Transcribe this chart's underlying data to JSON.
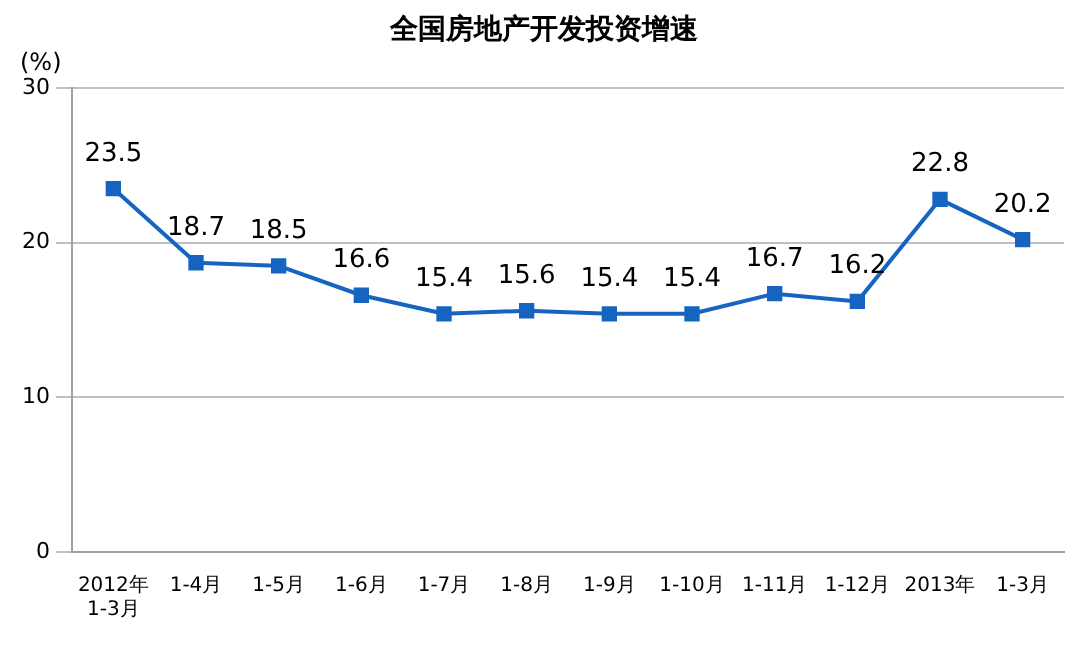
{
  "chart_data": {
    "type": "line",
    "title": "全国房地产开发投资增速",
    "ylabel": "(%)",
    "categories": [
      "2012年\n1-3月",
      "1-4月",
      "1-5月",
      "1-6月",
      "1-7月",
      "1-8月",
      "1-9月",
      "1-10月",
      "1-11月",
      "1-12月",
      "2013年",
      "1-3月"
    ],
    "series": [
      {
        "color": "#1565c0",
        "values": [
          23.5,
          18.7,
          18.5,
          16.6,
          15.4,
          15.6,
          15.4,
          15.4,
          16.7,
          16.2,
          22.8,
          20.2
        ]
      }
    ],
    "ylim": [
      0,
      30
    ],
    "yticks": [
      0,
      10,
      20,
      30
    ],
    "grid": "y",
    "legend": false,
    "marker": "square",
    "line_style": "solid",
    "data_labels": true
  }
}
